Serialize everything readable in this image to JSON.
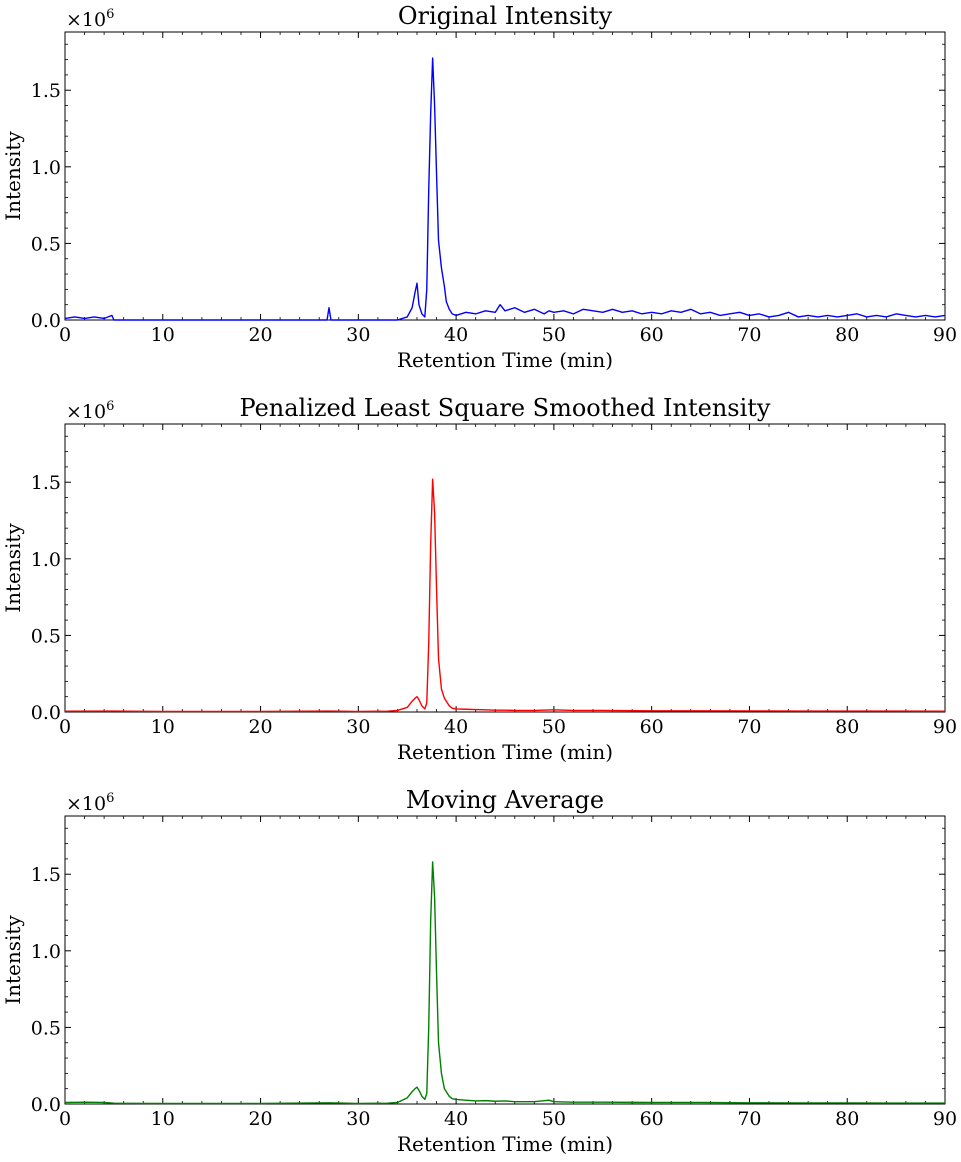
{
  "figure": {
    "background": "#ffffff"
  },
  "chart_data": [
    {
      "type": "line",
      "title": "Original Intensity",
      "xlabel": "Retention Time (min)",
      "ylabel": "Intensity",
      "sci_base": "×10",
      "sci_exponent": "6",
      "xlim": [
        0,
        90
      ],
      "ylim": [
        0,
        1.88
      ],
      "xticks": [
        0,
        10,
        20,
        30,
        40,
        50,
        60,
        70,
        80,
        90
      ],
      "xtick_labels": [
        "0",
        "10",
        "20",
        "30",
        "40",
        "50",
        "60",
        "70",
        "80",
        "90"
      ],
      "yticks": [
        0,
        0.5,
        1.0,
        1.5
      ],
      "ytick_labels": [
        "0.0",
        "0.5",
        "1.0",
        "1.5"
      ],
      "grid": false,
      "series": [
        {
          "color": "#0000ff",
          "x": [
            0,
            1,
            2,
            3,
            4,
            4.8,
            5,
            8,
            12,
            16,
            20,
            24,
            26.8,
            27,
            27.2,
            28,
            30,
            32,
            34,
            35,
            35.5,
            35.8,
            36,
            36.2,
            36.5,
            36.8,
            37,
            37.2,
            37.4,
            37.6,
            37.8,
            38.0,
            38.2,
            38.5,
            38.8,
            39.0,
            39.3,
            39.6,
            40,
            41,
            42,
            43,
            44,
            44.5,
            45,
            46,
            47,
            48,
            49,
            49.5,
            50,
            51,
            52,
            53,
            54,
            55,
            56,
            57,
            58,
            59,
            60,
            61,
            62,
            63,
            64,
            65,
            66,
            67,
            68,
            69,
            70,
            71,
            72,
            73,
            74,
            75,
            76,
            77,
            78,
            79,
            80,
            81,
            82,
            83,
            84,
            85,
            86,
            87,
            88,
            89,
            90
          ],
          "y": [
            0.01,
            0.02,
            0.01,
            0.02,
            0.01,
            0.03,
            0.0,
            0.0,
            0.0,
            0.0,
            0.0,
            0.0,
            0.0,
            0.08,
            0.0,
            0.0,
            0.0,
            0.0,
            0.0,
            0.02,
            0.08,
            0.18,
            0.24,
            0.1,
            0.04,
            0.02,
            0.2,
            0.85,
            1.35,
            1.71,
            1.4,
            0.95,
            0.52,
            0.34,
            0.22,
            0.12,
            0.07,
            0.04,
            0.03,
            0.05,
            0.04,
            0.06,
            0.05,
            0.1,
            0.06,
            0.08,
            0.05,
            0.07,
            0.04,
            0.06,
            0.05,
            0.06,
            0.04,
            0.07,
            0.06,
            0.05,
            0.07,
            0.05,
            0.06,
            0.04,
            0.05,
            0.04,
            0.06,
            0.05,
            0.07,
            0.04,
            0.05,
            0.03,
            0.04,
            0.05,
            0.03,
            0.04,
            0.02,
            0.03,
            0.05,
            0.02,
            0.03,
            0.02,
            0.03,
            0.02,
            0.03,
            0.04,
            0.02,
            0.03,
            0.02,
            0.04,
            0.03,
            0.02,
            0.03,
            0.02,
            0.03
          ]
        }
      ]
    },
    {
      "type": "line",
      "title": "Penalized Least Square Smoothed Intensity",
      "xlabel": "Retention Time (min)",
      "ylabel": "Intensity",
      "sci_base": "×10",
      "sci_exponent": "6",
      "xlim": [
        0,
        90
      ],
      "ylim": [
        0,
        1.88
      ],
      "xticks": [
        0,
        10,
        20,
        30,
        40,
        50,
        60,
        70,
        80,
        90
      ],
      "xtick_labels": [
        "0",
        "10",
        "20",
        "30",
        "40",
        "50",
        "60",
        "70",
        "80",
        "90"
      ],
      "yticks": [
        0,
        0.5,
        1.0,
        1.5
      ],
      "ytick_labels": [
        "0.0",
        "0.5",
        "1.0",
        "1.5"
      ],
      "grid": false,
      "series": [
        {
          "color": "#ff0000",
          "x": [
            0,
            5,
            10,
            20,
            27,
            30,
            33,
            34,
            35,
            35.5,
            35.8,
            36.0,
            36.2,
            36.5,
            36.8,
            37.0,
            37.2,
            37.4,
            37.6,
            37.8,
            38.0,
            38.2,
            38.5,
            38.8,
            39.0,
            39.3,
            39.6,
            40,
            41,
            42,
            43,
            44,
            45,
            46,
            48,
            50,
            52,
            55,
            60,
            65,
            70,
            75,
            80,
            85,
            90
          ],
          "y": [
            0.005,
            0.006,
            0.004,
            0.004,
            0.006,
            0.004,
            0.005,
            0.01,
            0.03,
            0.07,
            0.09,
            0.1,
            0.08,
            0.04,
            0.02,
            0.06,
            0.45,
            1.1,
            1.52,
            1.3,
            0.8,
            0.35,
            0.15,
            0.09,
            0.07,
            0.04,
            0.025,
            0.02,
            0.018,
            0.016,
            0.014,
            0.012,
            0.012,
            0.01,
            0.01,
            0.014,
            0.01,
            0.01,
            0.008,
            0.008,
            0.007,
            0.006,
            0.006,
            0.006,
            0.005
          ]
        }
      ]
    },
    {
      "type": "line",
      "title": "Moving Average",
      "xlabel": "Retention Time (min)",
      "ylabel": "Intensity",
      "sci_base": "×10",
      "sci_exponent": "6",
      "xlim": [
        0,
        90
      ],
      "ylim": [
        0,
        1.88
      ],
      "xticks": [
        0,
        10,
        20,
        30,
        40,
        50,
        60,
        70,
        80,
        90
      ],
      "xtick_labels": [
        "0",
        "10",
        "20",
        "30",
        "40",
        "50",
        "60",
        "70",
        "80",
        "90"
      ],
      "yticks": [
        0,
        0.5,
        1.0,
        1.5
      ],
      "ytick_labels": [
        "0.0",
        "0.5",
        "1.0",
        "1.5"
      ],
      "grid": false,
      "series": [
        {
          "color": "#008000",
          "x": [
            0,
            2,
            4,
            5,
            10,
            20,
            27,
            30,
            33,
            34,
            35,
            35.5,
            35.8,
            36.0,
            36.2,
            36.5,
            36.8,
            37.0,
            37.2,
            37.4,
            37.6,
            37.8,
            38.0,
            38.2,
            38.5,
            38.8,
            39.0,
            39.3,
            39.6,
            40,
            41,
            42,
            43,
            44,
            45,
            46,
            48,
            49.5,
            50,
            52,
            55,
            60,
            65,
            70,
            75,
            80,
            85,
            90
          ],
          "y": [
            0.01,
            0.012,
            0.01,
            0.005,
            0.004,
            0.004,
            0.008,
            0.004,
            0.005,
            0.01,
            0.04,
            0.08,
            0.1,
            0.11,
            0.09,
            0.05,
            0.03,
            0.07,
            0.5,
            1.2,
            1.58,
            1.35,
            0.85,
            0.4,
            0.2,
            0.1,
            0.08,
            0.05,
            0.035,
            0.03,
            0.025,
            0.02,
            0.022,
            0.018,
            0.02,
            0.015,
            0.015,
            0.025,
            0.015,
            0.012,
            0.012,
            0.01,
            0.01,
            0.008,
            0.007,
            0.007,
            0.006,
            0.006
          ]
        }
      ]
    }
  ]
}
